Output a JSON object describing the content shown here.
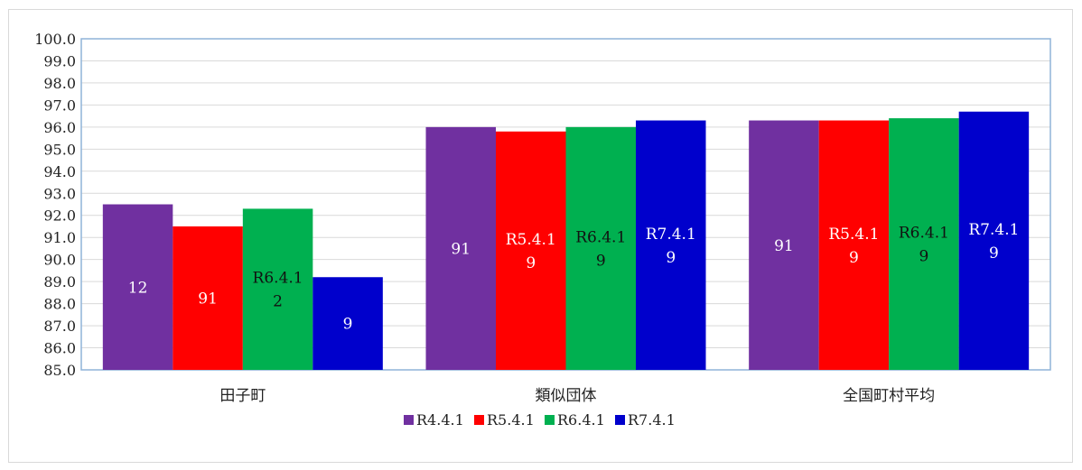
{
  "chart_data": {
    "type": "bar",
    "categories": [
      "田子町",
      "類似団体",
      "全国町村平均"
    ],
    "series": [
      {
        "name": "R4.4.1",
        "color": "#7030a0",
        "values": [
          92.5,
          96.0,
          96.3
        ],
        "labels": [
          "12",
          "91",
          "91"
        ],
        "label_color": "#ffffff"
      },
      {
        "name": "R5.4.1",
        "color": "#ff0000",
        "values": [
          91.5,
          95.8,
          96.3
        ],
        "labels": [
          "91",
          "R5.4.1\n9",
          "R5.4.1\n9"
        ],
        "label_color": "#ffffff"
      },
      {
        "name": "R6.4.1",
        "color": "#00b050",
        "values": [
          92.3,
          96.0,
          96.4
        ],
        "labels": [
          "R6.4.1\n2",
          "R6.4.1\n9",
          "R6.4.1\n9"
        ],
        "label_color": "#111111"
      },
      {
        "name": "R7.4.1",
        "color": "#0000cc",
        "values": [
          89.2,
          96.3,
          96.7
        ],
        "labels": [
          "9",
          "R7.4.1\n9",
          "R7.4.1\n9"
        ],
        "label_color": "#ffffff"
      }
    ],
    "y_ticks": [
      "85.0",
      "86.0",
      "87.0",
      "88.0",
      "89.0",
      "90.0",
      "91.0",
      "92.0",
      "93.0",
      "94.0",
      "95.0",
      "96.0",
      "97.0",
      "98.0",
      "99.0",
      "100.0"
    ],
    "ylim": [
      85,
      100
    ],
    "grid": true,
    "legend": "bottom",
    "title": "",
    "xlabel": "",
    "ylabel": ""
  }
}
